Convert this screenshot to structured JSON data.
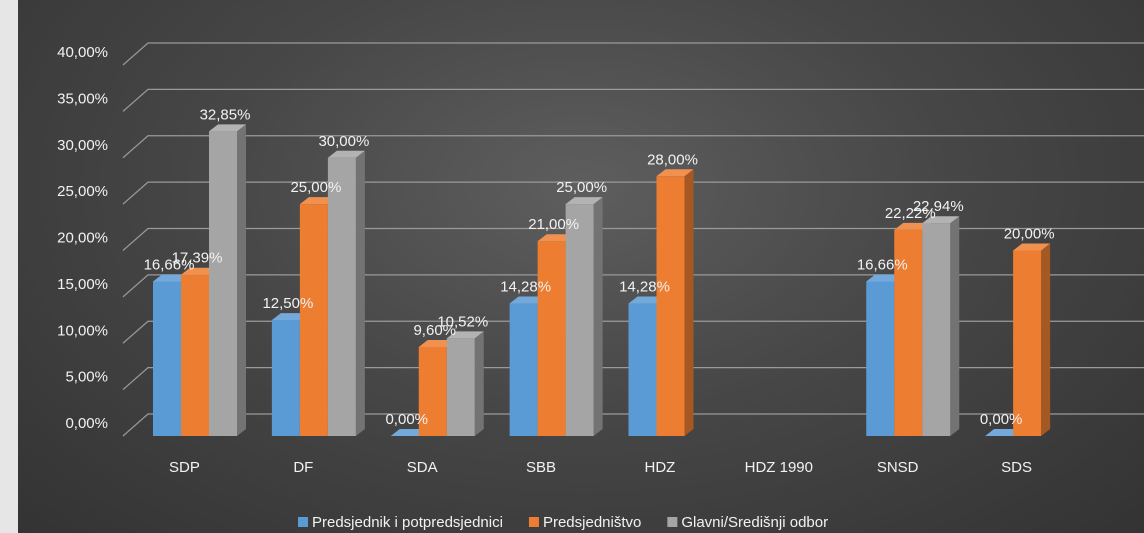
{
  "chart_data": {
    "type": "bar",
    "title": "",
    "xlabel": "",
    "ylabel": "",
    "ylim": [
      0,
      0.4
    ],
    "yticks": [
      0,
      0.05,
      0.1,
      0.15,
      0.2,
      0.25,
      0.3,
      0.35,
      0.4
    ],
    "ytick_labels": [
      "0,00%",
      "5,00%",
      "10,00%",
      "15,00%",
      "20,00%",
      "25,00%",
      "30,00%",
      "35,00%",
      "40,00%"
    ],
    "categories": [
      "SDP",
      "DF",
      "SDA",
      "SBB",
      "HDZ",
      "HDZ 1990",
      "SNSD",
      "SDS"
    ],
    "grid": true,
    "legend_position": "bottom",
    "series": [
      {
        "name": "Predsjednik i potpredsjednici",
        "color": "#5b9bd5",
        "values": [
          0.1666,
          0.125,
          0.0,
          0.1428,
          0.1428,
          null,
          0.1666,
          0.0
        ],
        "labels": [
          "16,66%",
          "12,50%",
          "0,00%",
          "14,28%",
          "14,28%",
          "",
          "16,66%",
          "0,00%"
        ]
      },
      {
        "name": "Predsjedništvo",
        "color": "#ed7d31",
        "values": [
          0.1739,
          0.25,
          0.096,
          0.21,
          0.28,
          null,
          0.2222,
          0.2
        ],
        "labels": [
          "17,39%",
          "25,00%",
          "9,60%",
          "21,00%",
          "28,00%",
          "",
          "22,22%",
          "20,00%"
        ]
      },
      {
        "name": "Glavni/Središnji odbor",
        "color": "#a5a5a5",
        "values": [
          0.3285,
          0.3,
          0.1052,
          0.25,
          null,
          null,
          0.2294,
          null
        ],
        "labels": [
          "32,85%",
          "30,00%",
          "10,52%",
          "25,00%",
          "",
          "",
          "22,94%",
          ""
        ]
      }
    ]
  }
}
